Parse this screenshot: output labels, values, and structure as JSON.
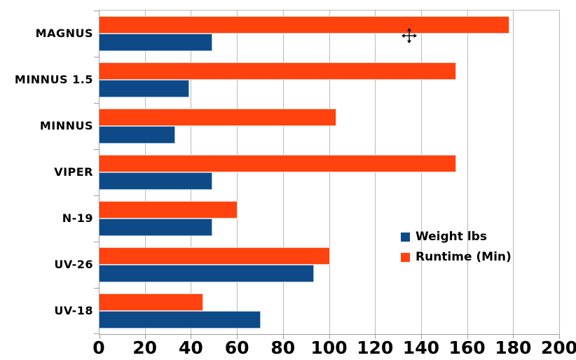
{
  "chart_data": {
    "type": "bar",
    "orientation": "horizontal",
    "title": "",
    "categories": [
      "MAGNUS",
      "MINNUS 1.5",
      "MINNUS",
      "VIPER",
      "N-19",
      "UV-26",
      "UV-18"
    ],
    "series": [
      {
        "name": "Weight lbs",
        "color": "#0d4a87",
        "values": [
          49,
          39,
          33,
          49,
          49,
          93,
          70
        ]
      },
      {
        "name": "Runtime (Min)",
        "color": "#ff420e",
        "values": [
          178,
          155,
          103,
          155,
          60,
          100,
          45
        ]
      }
    ],
    "bar_order_top_to_bottom_per_category": [
      "Runtime (Min)",
      "Weight lbs"
    ],
    "x_axis": {
      "min": 0,
      "max": 200,
      "tick_interval": 20,
      "tick_labels": [
        "0",
        "20",
        "40",
        "60",
        "80",
        "100",
        "120",
        "140",
        "160",
        "180",
        "200"
      ]
    },
    "y_axis_label": "",
    "x_axis_label": "",
    "grid": "vertical-only",
    "legend_position": "middle-right",
    "style_colors": {
      "gridline": "#b9b9b9",
      "axis": "#9e9e9e",
      "background": "#ffffff",
      "text": "#000000"
    }
  },
  "cursor": {
    "type": "move"
  }
}
